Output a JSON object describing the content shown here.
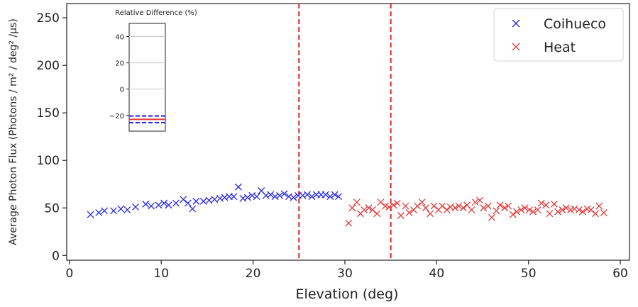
{
  "chart_data": {
    "type": "scatter",
    "xlabel": "Elevation (deg)",
    "ylabel": "Average Photon Flux (Photons / m² / deg² /μs)",
    "xlim": [
      -0.3,
      61
    ],
    "ylim": [
      -5,
      265
    ],
    "x_ticks": [
      "0",
      "10",
      "20",
      "30",
      "40",
      "50",
      "60"
    ],
    "y_ticks": [
      "0",
      "50",
      "100",
      "150",
      "200",
      "250"
    ],
    "marker": "x",
    "grid": false,
    "legend_position": "top-right",
    "vertical_lines": [
      {
        "x": 25,
        "color": "#dc2626",
        "style": "dashed"
      },
      {
        "x": 35,
        "color": "#dc2626",
        "style": "dashed"
      }
    ],
    "series": [
      {
        "name": "Coihueco",
        "color": "#2a2ae8",
        "points": [
          [
            2.3,
            43
          ],
          [
            3.2,
            45
          ],
          [
            3.8,
            47
          ],
          [
            4.8,
            47
          ],
          [
            5.6,
            49
          ],
          [
            6.3,
            48
          ],
          [
            7.2,
            51
          ],
          [
            8.3,
            54
          ],
          [
            8.9,
            52
          ],
          [
            9.7,
            53
          ],
          [
            10.3,
            55
          ],
          [
            10.8,
            53
          ],
          [
            11.6,
            55
          ],
          [
            12.4,
            59
          ],
          [
            12.9,
            55
          ],
          [
            13.4,
            49
          ],
          [
            13.8,
            57
          ],
          [
            14.6,
            57
          ],
          [
            15.2,
            58
          ],
          [
            15.8,
            59
          ],
          [
            16.4,
            60
          ],
          [
            16.9,
            61
          ],
          [
            17.4,
            62
          ],
          [
            17.9,
            62
          ],
          [
            18.4,
            72
          ],
          [
            18.9,
            60
          ],
          [
            19.4,
            61
          ],
          [
            19.9,
            63
          ],
          [
            20.4,
            62
          ],
          [
            20.9,
            68
          ],
          [
            21.4,
            63
          ],
          [
            21.9,
            64
          ],
          [
            22.4,
            62
          ],
          [
            22.9,
            63
          ],
          [
            23.4,
            65
          ],
          [
            23.9,
            62
          ],
          [
            24.4,
            61
          ],
          [
            24.9,
            63
          ],
          [
            25.4,
            63
          ],
          [
            25.9,
            64
          ],
          [
            26.4,
            62
          ],
          [
            26.9,
            64
          ],
          [
            27.4,
            64
          ],
          [
            27.9,
            64
          ],
          [
            28.4,
            62
          ],
          [
            28.9,
            64
          ],
          [
            29.3,
            62
          ]
        ]
      },
      {
        "name": "Heat",
        "color": "#e43b3b",
        "points": [
          [
            30.4,
            34
          ],
          [
            30.8,
            50
          ],
          [
            31.3,
            56
          ],
          [
            31.7,
            44
          ],
          [
            32.1,
            48
          ],
          [
            32.6,
            50
          ],
          [
            33.0,
            48
          ],
          [
            33.5,
            44
          ],
          [
            33.9,
            56
          ],
          [
            34.4,
            52
          ],
          [
            34.8,
            51
          ],
          [
            35.3,
            53
          ],
          [
            35.7,
            55
          ],
          [
            36.1,
            42
          ],
          [
            36.6,
            52
          ],
          [
            37.0,
            45
          ],
          [
            37.5,
            48
          ],
          [
            37.9,
            52
          ],
          [
            38.4,
            56
          ],
          [
            38.8,
            50
          ],
          [
            39.3,
            44
          ],
          [
            39.7,
            52
          ],
          [
            40.2,
            48
          ],
          [
            40.6,
            52
          ],
          [
            41.1,
            48
          ],
          [
            41.5,
            51
          ],
          [
            42.0,
            50
          ],
          [
            42.4,
            52
          ],
          [
            42.9,
            50
          ],
          [
            43.3,
            53
          ],
          [
            43.8,
            48
          ],
          [
            44.2,
            56
          ],
          [
            44.7,
            58
          ],
          [
            45.1,
            50
          ],
          [
            45.6,
            52
          ],
          [
            46.0,
            40
          ],
          [
            46.5,
            47
          ],
          [
            46.9,
            53
          ],
          [
            47.4,
            50
          ],
          [
            47.8,
            52
          ],
          [
            48.3,
            43
          ],
          [
            48.7,
            46
          ],
          [
            49.2,
            48
          ],
          [
            49.6,
            50
          ],
          [
            50.1,
            48
          ],
          [
            50.5,
            46
          ],
          [
            51.0,
            48
          ],
          [
            51.4,
            55
          ],
          [
            51.9,
            53
          ],
          [
            52.3,
            44
          ],
          [
            52.8,
            54
          ],
          [
            53.2,
            46
          ],
          [
            53.7,
            48
          ],
          [
            54.1,
            50
          ],
          [
            54.6,
            48
          ],
          [
            55.0,
            49
          ],
          [
            55.5,
            48
          ],
          [
            55.9,
            46
          ],
          [
            56.4,
            49
          ],
          [
            56.8,
            48
          ],
          [
            57.3,
            44
          ],
          [
            57.7,
            52
          ],
          [
            58.2,
            45
          ]
        ]
      }
    ],
    "inset": {
      "title": "Relative Difference (%)",
      "ylim": [
        -32,
        50
      ],
      "y_ticks": [
        "40",
        "20",
        "0",
        "−20"
      ],
      "lines": [
        {
          "y": -20.5,
          "color": "#2a2ae8",
          "style": "dashed"
        },
        {
          "y": -23,
          "color": "#e43b3b",
          "style": "solid"
        },
        {
          "y": -25.5,
          "color": "#2a2ae8",
          "style": "dashed"
        }
      ]
    }
  }
}
